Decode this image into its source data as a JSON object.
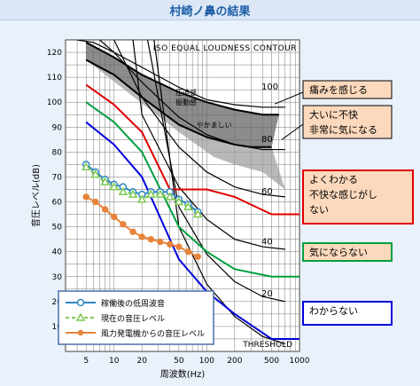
{
  "title": "村崎ノ鼻の結果",
  "chart_data": {
    "type": "line",
    "title": "ISO EQUAL LOUDNESS CONTOUR",
    "xlabel": "周波数(Hz)",
    "ylabel": "音圧レベル(dB)",
    "xscale": "log",
    "xlim": [
      3,
      1000
    ],
    "ylim": [
      0,
      125
    ],
    "xticks": [
      5,
      10,
      20,
      50,
      100,
      200,
      500,
      1000
    ],
    "yticks": [
      10,
      20,
      30,
      40,
      50,
      60,
      70,
      80,
      90,
      100,
      110,
      120
    ],
    "threshold_label": "THRESHOLD",
    "contour_labels": [
      "100",
      "80",
      "60",
      "40",
      "20"
    ],
    "contours": [
      {
        "phon": 100,
        "x": [
          4,
          6,
          10,
          20,
          50,
          100,
          200,
          400,
          700
        ],
        "y": [
          125,
          124,
          120,
          114,
          106,
          101,
          99,
          98,
          98
        ]
      },
      {
        "phon": 80,
        "x": [
          7,
          10,
          20,
          50,
          100,
          200,
          400,
          700
        ],
        "y": [
          125,
          120,
          108,
          94,
          87,
          83,
          81,
          81
        ]
      },
      {
        "phon": 60,
        "x": [
          10,
          20,
          50,
          100,
          200,
          400,
          700
        ],
        "y": [
          125,
          102,
          82,
          72,
          66,
          63,
          62
        ]
      },
      {
        "phon": 40,
        "x": [
          16,
          20,
          50,
          100,
          200,
          400,
          700
        ],
        "y": [
          125,
          95,
          66,
          53,
          45,
          42,
          41
        ]
      },
      {
        "phon": 20,
        "x": [
          23,
          50,
          100,
          200,
          400,
          700
        ],
        "y": [
          125,
          58,
          39,
          28,
          22,
          20
        ]
      },
      {
        "phon": 0,
        "x": [
          27,
          50,
          100,
          200,
          400,
          700
        ],
        "y": [
          125,
          50,
          27,
          14,
          6,
          3
        ]
      }
    ],
    "regions": [
      {
        "name": "圧迫感 振動感",
        "color": "#666666"
      },
      {
        "name": "やかましい",
        "color": "#9a9a9a"
      }
    ],
    "threshold_lines": [
      {
        "name": "痛みを感じる",
        "color": "#000000",
        "x": [
          5,
          10,
          20,
          50,
          100,
          200,
          400,
          600
        ],
        "y": [
          124,
          118,
          111,
          104,
          100,
          97,
          95,
          95
        ]
      },
      {
        "name": "大いに不快 非常に気になる",
        "color": "#000000",
        "x": [
          5,
          10,
          20,
          50,
          100,
          200,
          300,
          500
        ],
        "y": [
          117,
          111,
          102,
          91,
          86,
          83,
          82,
          82
        ]
      },
      {
        "name": "よくわかる 不快な感じがしない",
        "color": "#e00000",
        "x": [
          5,
          10,
          20,
          40,
          50,
          100,
          200,
          500,
          1000
        ],
        "y": [
          107,
          99,
          88,
          65,
          65,
          65,
          62,
          55,
          55
        ]
      },
      {
        "name": "気にならない",
        "color": "#00a040",
        "x": [
          5,
          10,
          20,
          50,
          100,
          200,
          500,
          1000
        ],
        "y": [
          100,
          92,
          80,
          50,
          40,
          33,
          30,
          30
        ]
      },
      {
        "name": "わからない",
        "color": "#0000dd",
        "x": [
          5,
          10,
          20,
          50,
          100,
          200,
          500,
          1000
        ],
        "y": [
          92,
          83,
          70,
          37,
          24,
          15,
          5,
          5
        ]
      }
    ],
    "labels": [
      {
        "text": "痛みを感じる",
        "border": "#000000"
      },
      {
        "text": "大いに不快 非常に気になる",
        "border": "#000000"
      },
      {
        "text": "よくわかる 不快な感じがしない",
        "border": "#e00000"
      },
      {
        "text": "気にならない",
        "border": "#00a040"
      },
      {
        "text": "わからない",
        "border": "#0000dd"
      }
    ],
    "series": [
      {
        "name": "稼働後の低周波音",
        "color": "#2e86c1",
        "marker": "circle",
        "x": [
          5,
          6.3,
          8,
          10,
          12.5,
          16,
          20,
          25,
          31.5,
          40,
          50,
          63,
          80
        ],
        "y": [
          75,
          72,
          69,
          67,
          66,
          64,
          63,
          64,
          64,
          64,
          61,
          59,
          56
        ]
      },
      {
        "name": "現在の音圧レベル",
        "color": "#7ec850",
        "marker": "triangle",
        "x": [
          5,
          6.3,
          8,
          10,
          12.5,
          16,
          20,
          25,
          31.5,
          40,
          50,
          63,
          80
        ],
        "y": [
          74,
          71,
          68,
          66,
          64,
          63,
          61,
          63,
          63,
          62,
          60,
          58,
          55
        ]
      },
      {
        "name": "風力発電機からの音圧レベル",
        "color": "#e8833a",
        "marker": "circle",
        "x": [
          5,
          6.3,
          8,
          10,
          12.5,
          16,
          20,
          25,
          31.5,
          40,
          50,
          63,
          80
        ],
        "y": [
          62,
          60,
          57,
          54,
          51,
          48,
          46,
          45,
          44,
          43,
          42,
          40,
          38
        ]
      }
    ],
    "legend_position": "bottom-left",
    "grid": true
  }
}
